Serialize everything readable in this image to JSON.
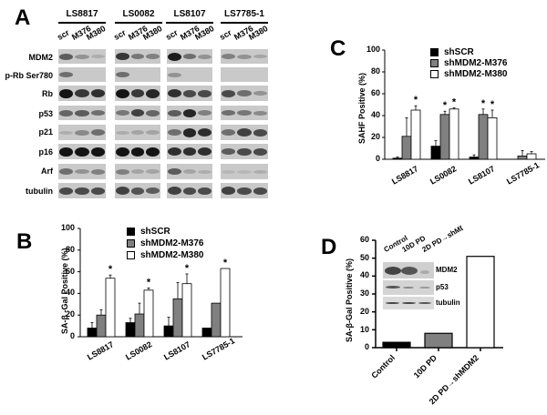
{
  "panelA": {
    "letter": "A",
    "cell_lines": [
      "LS8817",
      "LS0082",
      "LS8107",
      "LS7785-1"
    ],
    "lanes": [
      "scr",
      "M376",
      "M380"
    ],
    "proteins": [
      "MDM2",
      "p-Rb Ser780",
      "Rb",
      "p53",
      "p21",
      "p16",
      "Arf",
      "tubulin"
    ]
  },
  "panelB": {
    "letter": "B",
    "ylabel": "SA-β -Gal Positive  (%)",
    "yticks": [
      "100",
      "80",
      "60",
      "40",
      "20",
      "0"
    ],
    "legend": [
      "shSCR",
      "shMDM2-M376",
      "shMDM2-M380"
    ],
    "categories": [
      "LS8817",
      "LS0082",
      "LS8107",
      "LS7785-1"
    ],
    "star": "*"
  },
  "panelC": {
    "letter": "C",
    "ylabel": "SAHF Positive  (%)",
    "yticks": [
      "100",
      "80",
      "60",
      "40",
      "20",
      "0"
    ],
    "legend": [
      "shSCR",
      "shMDM2-M376",
      "shMDM2-M380"
    ],
    "categories": [
      "LS8817",
      "LS0082",
      "LS8107",
      "LS7785-1"
    ],
    "star": "*"
  },
  "panelD": {
    "letter": "D",
    "ylabel": "SA-β-Gal Positive (%)",
    "yticks": [
      "60",
      "50",
      "40",
      "30",
      "20",
      "10",
      "0"
    ],
    "categories": [
      "Control",
      "10D PD",
      "2D PD→shMDM2"
    ],
    "inset_lanes": [
      "Control",
      "10D PD",
      "2D PD→shMDM2"
    ],
    "inset_proteins": [
      "MDM2",
      "p53",
      "tubulin"
    ]
  },
  "chart_data": [
    {
      "panel": "A",
      "type": "table",
      "title": "Western blots",
      "columns": [
        "LS8817",
        "LS0082",
        "LS8107",
        "LS7785-1"
      ],
      "lanes": [
        "scr",
        "M376",
        "M380"
      ],
      "rows": [
        "MDM2",
        "p-Rb Ser780",
        "Rb",
        "p53",
        "p21",
        "p16",
        "Arf",
        "tubulin"
      ]
    },
    {
      "panel": "B",
      "type": "bar",
      "title": "",
      "xlabel": "",
      "ylabel": "SA-β -Gal Positive (%)",
      "ylim": [
        0,
        100
      ],
      "categories": [
        "LS8817",
        "LS0082",
        "LS8107",
        "LS7785-1"
      ],
      "series": [
        {
          "name": "shSCR",
          "color": "#000000",
          "values": [
            8,
            13,
            10,
            8
          ],
          "errors": [
            5,
            4,
            8,
            0
          ]
        },
        {
          "name": "shMDM2-M376",
          "color": "#808080",
          "values": [
            20,
            21,
            35,
            31
          ],
          "errors": [
            5,
            10,
            15,
            0
          ]
        },
        {
          "name": "shMDM2-M380",
          "color": "#ffffff",
          "values": [
            54,
            43,
            49,
            63
          ],
          "errors": [
            3,
            2,
            9,
            0
          ]
        }
      ],
      "significance": {
        "shMDM2-M380": [
          "LS8817",
          "LS0082",
          "LS8107",
          "LS7785-1"
        ]
      },
      "legend_position": "top"
    },
    {
      "panel": "C",
      "type": "bar",
      "title": "",
      "xlabel": "",
      "ylabel": "SAHF Positive (%)",
      "ylim": [
        0,
        100
      ],
      "categories": [
        "LS8817",
        "LS0082",
        "LS8107",
        "LS7785-1"
      ],
      "series": [
        {
          "name": "shSCR",
          "color": "#000000",
          "values": [
            1,
            12,
            2,
            0
          ],
          "errors": [
            1,
            5,
            2,
            0
          ]
        },
        {
          "name": "shMDM2-M376",
          "color": "#808080",
          "values": [
            21,
            41,
            41,
            3
          ],
          "errors": [
            17,
            3,
            5,
            5
          ]
        },
        {
          "name": "shMDM2-M380",
          "color": "#ffffff",
          "values": [
            45,
            46,
            38,
            5
          ],
          "errors": [
            4,
            1,
            7,
            2
          ]
        }
      ],
      "significance": {
        "shMDM2-M376": [
          "LS0082",
          "LS8107"
        ],
        "shMDM2-M380": [
          "LS8817",
          "LS0082",
          "LS8107"
        ]
      },
      "legend_position": "top"
    },
    {
      "panel": "D",
      "type": "bar",
      "title": "",
      "xlabel": "",
      "ylabel": "SA-β-Gal Positive (%)",
      "ylim": [
        0,
        60
      ],
      "categories": [
        "Control",
        "10D PD",
        "2D PD→shMDM2"
      ],
      "values": [
        3,
        8,
        51
      ],
      "colors": [
        "#000000",
        "#808080",
        "#ffffff"
      ]
    }
  ]
}
